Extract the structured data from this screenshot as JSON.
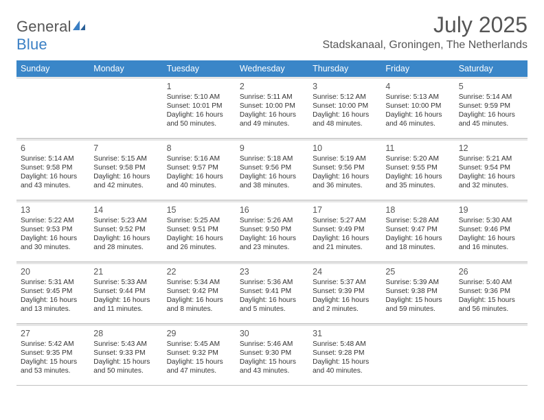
{
  "brand": {
    "name_part1": "General",
    "name_part2": "Blue"
  },
  "title": {
    "month": "July 2025",
    "location": "Stadskanaal, Groningen, The Netherlands"
  },
  "colors": {
    "header_bg": "#3a86c8",
    "header_text": "#ffffff",
    "band": "#e6e6e6",
    "border": "#bfbfbf",
    "text": "#333333",
    "muted": "#555555",
    "brand_blue": "#3a7fc4",
    "background": "#ffffff"
  },
  "typography": {
    "base_font": "Arial",
    "title_size_pt": 24,
    "location_size_pt": 12,
    "weekday_size_pt": 9.5,
    "day_size_pt": 7.8
  },
  "calendar": {
    "type": "table",
    "weekdays": [
      "Sunday",
      "Monday",
      "Tuesday",
      "Wednesday",
      "Thursday",
      "Friday",
      "Saturday"
    ],
    "weeks": [
      [
        null,
        null,
        {
          "n": "1",
          "sr": "5:10 AM",
          "ss": "10:01 PM",
          "dl": "16 hours and 50 minutes."
        },
        {
          "n": "2",
          "sr": "5:11 AM",
          "ss": "10:00 PM",
          "dl": "16 hours and 49 minutes."
        },
        {
          "n": "3",
          "sr": "5:12 AM",
          "ss": "10:00 PM",
          "dl": "16 hours and 48 minutes."
        },
        {
          "n": "4",
          "sr": "5:13 AM",
          "ss": "10:00 PM",
          "dl": "16 hours and 46 minutes."
        },
        {
          "n": "5",
          "sr": "5:14 AM",
          "ss": "9:59 PM",
          "dl": "16 hours and 45 minutes."
        }
      ],
      [
        {
          "n": "6",
          "sr": "5:14 AM",
          "ss": "9:58 PM",
          "dl": "16 hours and 43 minutes."
        },
        {
          "n": "7",
          "sr": "5:15 AM",
          "ss": "9:58 PM",
          "dl": "16 hours and 42 minutes."
        },
        {
          "n": "8",
          "sr": "5:16 AM",
          "ss": "9:57 PM",
          "dl": "16 hours and 40 minutes."
        },
        {
          "n": "9",
          "sr": "5:18 AM",
          "ss": "9:56 PM",
          "dl": "16 hours and 38 minutes."
        },
        {
          "n": "10",
          "sr": "5:19 AM",
          "ss": "9:56 PM",
          "dl": "16 hours and 36 minutes."
        },
        {
          "n": "11",
          "sr": "5:20 AM",
          "ss": "9:55 PM",
          "dl": "16 hours and 35 minutes."
        },
        {
          "n": "12",
          "sr": "5:21 AM",
          "ss": "9:54 PM",
          "dl": "16 hours and 32 minutes."
        }
      ],
      [
        {
          "n": "13",
          "sr": "5:22 AM",
          "ss": "9:53 PM",
          "dl": "16 hours and 30 minutes."
        },
        {
          "n": "14",
          "sr": "5:23 AM",
          "ss": "9:52 PM",
          "dl": "16 hours and 28 minutes."
        },
        {
          "n": "15",
          "sr": "5:25 AM",
          "ss": "9:51 PM",
          "dl": "16 hours and 26 minutes."
        },
        {
          "n": "16",
          "sr": "5:26 AM",
          "ss": "9:50 PM",
          "dl": "16 hours and 23 minutes."
        },
        {
          "n": "17",
          "sr": "5:27 AM",
          "ss": "9:49 PM",
          "dl": "16 hours and 21 minutes."
        },
        {
          "n": "18",
          "sr": "5:28 AM",
          "ss": "9:47 PM",
          "dl": "16 hours and 18 minutes."
        },
        {
          "n": "19",
          "sr": "5:30 AM",
          "ss": "9:46 PM",
          "dl": "16 hours and 16 minutes."
        }
      ],
      [
        {
          "n": "20",
          "sr": "5:31 AM",
          "ss": "9:45 PM",
          "dl": "16 hours and 13 minutes."
        },
        {
          "n": "21",
          "sr": "5:33 AM",
          "ss": "9:44 PM",
          "dl": "16 hours and 11 minutes."
        },
        {
          "n": "22",
          "sr": "5:34 AM",
          "ss": "9:42 PM",
          "dl": "16 hours and 8 minutes."
        },
        {
          "n": "23",
          "sr": "5:36 AM",
          "ss": "9:41 PM",
          "dl": "16 hours and 5 minutes."
        },
        {
          "n": "24",
          "sr": "5:37 AM",
          "ss": "9:39 PM",
          "dl": "16 hours and 2 minutes."
        },
        {
          "n": "25",
          "sr": "5:39 AM",
          "ss": "9:38 PM",
          "dl": "15 hours and 59 minutes."
        },
        {
          "n": "26",
          "sr": "5:40 AM",
          "ss": "9:36 PM",
          "dl": "15 hours and 56 minutes."
        }
      ],
      [
        {
          "n": "27",
          "sr": "5:42 AM",
          "ss": "9:35 PM",
          "dl": "15 hours and 53 minutes."
        },
        {
          "n": "28",
          "sr": "5:43 AM",
          "ss": "9:33 PM",
          "dl": "15 hours and 50 minutes."
        },
        {
          "n": "29",
          "sr": "5:45 AM",
          "ss": "9:32 PM",
          "dl": "15 hours and 47 minutes."
        },
        {
          "n": "30",
          "sr": "5:46 AM",
          "ss": "9:30 PM",
          "dl": "15 hours and 43 minutes."
        },
        {
          "n": "31",
          "sr": "5:48 AM",
          "ss": "9:28 PM",
          "dl": "15 hours and 40 minutes."
        },
        null,
        null
      ]
    ],
    "labels": {
      "sunrise_prefix": "Sunrise: ",
      "sunset_prefix": "Sunset: ",
      "daylight_prefix": "Daylight: "
    }
  }
}
